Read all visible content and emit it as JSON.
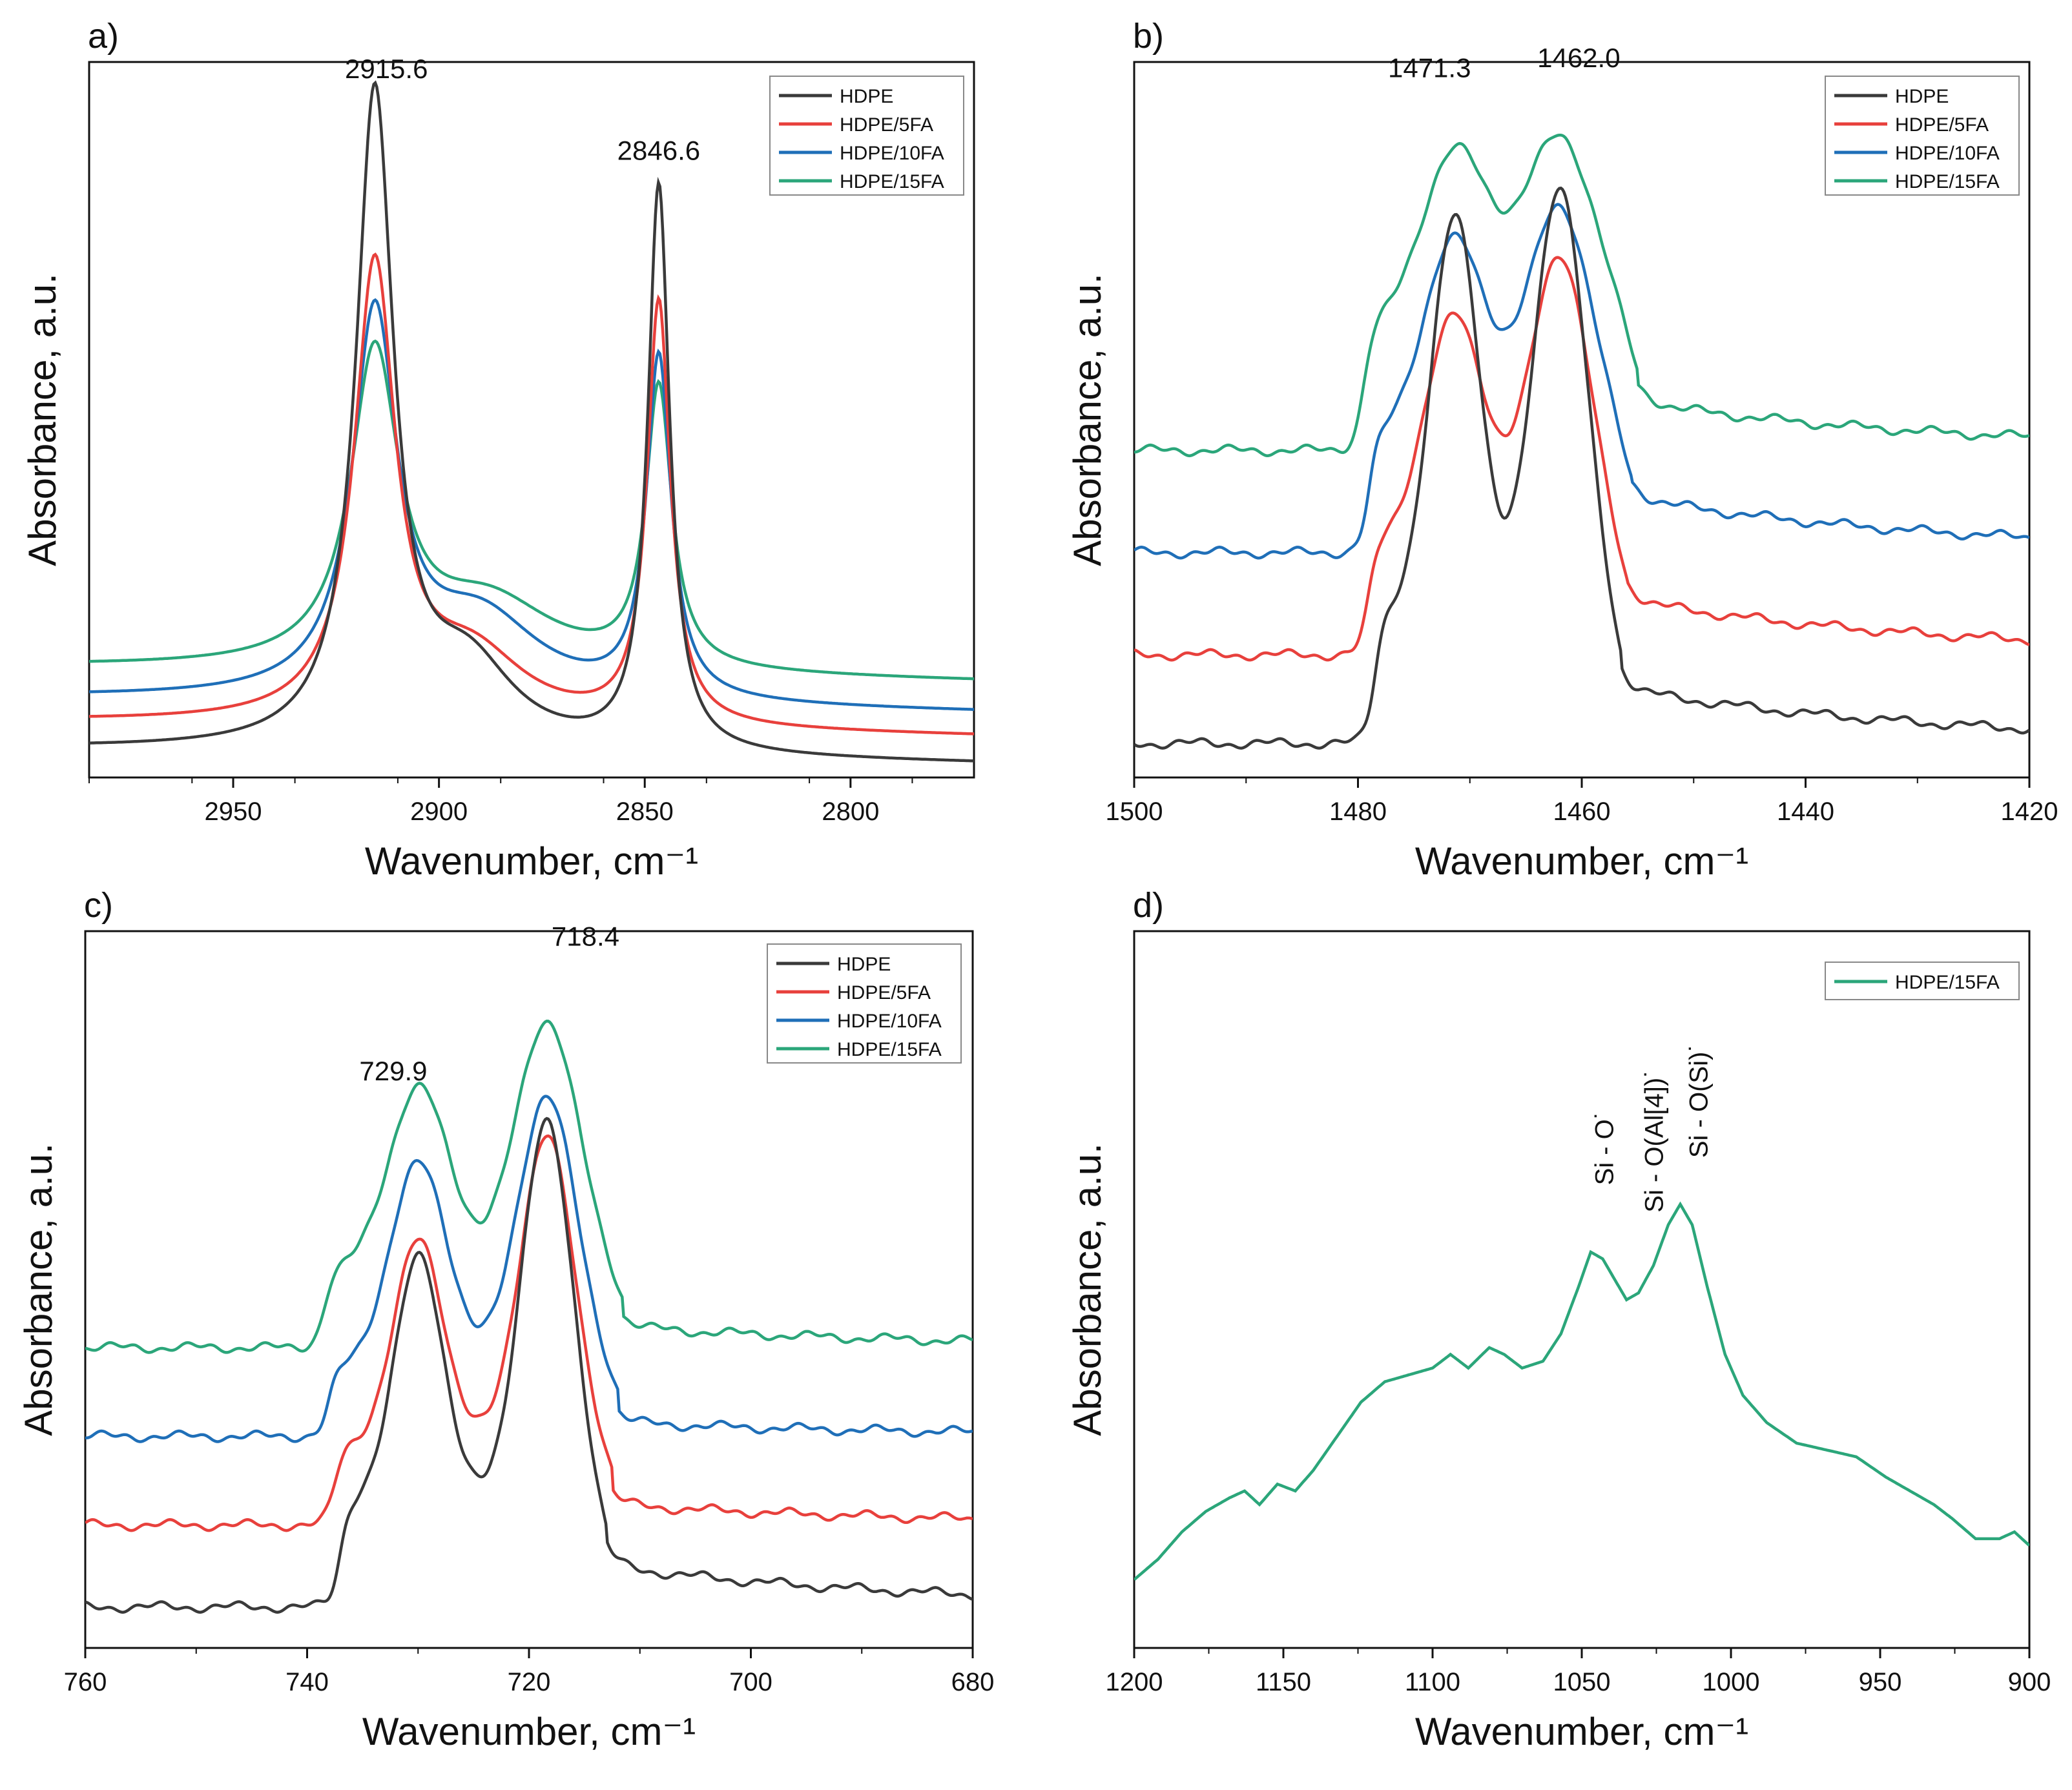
{
  "colors": {
    "HDPE": "#3a3a3a",
    "HDPE/5FA": "#e8403c",
    "HDPE/10FA": "#1f6fb8",
    "HDPE/15FA": "#2ba67a",
    "axis": "#111111"
  },
  "chart_data": [
    {
      "panel": "a)",
      "type": "line",
      "xlabel": "Wavenumber, cm⁻¹",
      "ylabel": "Absorbance, a.u.",
      "xlim": [
        2985,
        2770
      ],
      "ylim": [
        0,
        1.05
      ],
      "xticks": [
        2950,
        2900,
        2850,
        2800
      ],
      "yticks_shown": false,
      "legend": [
        "HDPE",
        "HDPE/5FA",
        "HDPE/10FA",
        "HDPE/15FA"
      ],
      "legend_position": "top-right",
      "annotations": [
        {
          "text": "2915.6",
          "x": 2915.6,
          "y": 1.0
        },
        {
          "text": "2846.6",
          "x": 2846.6,
          "y": 0.88
        }
      ],
      "series": [
        {
          "name": "HDPE",
          "baseline": 0.02,
          "slope": 0.0001,
          "peaks": [
            {
              "c": 2915.6,
              "h": 0.95,
              "w": 5.5
            },
            {
              "c": 2846.6,
              "h": 0.83,
              "w": 3.2
            },
            {
              "c": 2893,
              "h": 0.12,
              "w": 14
            }
          ]
        },
        {
          "name": "HDPE/5FA",
          "baseline": 0.06,
          "slope": 0.0001,
          "peaks": [
            {
              "c": 2915.6,
              "h": 0.66,
              "w": 6
            },
            {
              "c": 2846.6,
              "h": 0.62,
              "w": 3.4
            },
            {
              "c": 2892,
              "h": 0.1,
              "w": 16
            }
          ]
        },
        {
          "name": "HDPE/10FA",
          "baseline": 0.095,
          "slope": 0.0001,
          "peaks": [
            {
              "c": 2915.6,
              "h": 0.55,
              "w": 6.5
            },
            {
              "c": 2846.6,
              "h": 0.5,
              "w": 3.6
            },
            {
              "c": 2890,
              "h": 0.12,
              "w": 18
            }
          ]
        },
        {
          "name": "HDPE/15FA",
          "baseline": 0.14,
          "slope": 0.0001,
          "peaks": [
            {
              "c": 2915.6,
              "h": 0.45,
              "w": 7
            },
            {
              "c": 2846.6,
              "h": 0.41,
              "w": 3.8
            },
            {
              "c": 2888,
              "h": 0.1,
              "w": 20
            }
          ]
        }
      ]
    },
    {
      "panel": "b)",
      "type": "line",
      "xlabel": "Wavenumber, cm⁻¹",
      "ylabel": "Absorbance, a.u.",
      "xlim": [
        1500,
        1420
      ],
      "ylim": [
        0,
        1.05
      ],
      "xticks": [
        1500,
        1480,
        1460,
        1440,
        1420
      ],
      "yticks_shown": false,
      "legend": [
        "HDPE",
        "HDPE/5FA",
        "HDPE/10FA",
        "HDPE/15FA"
      ],
      "legend_position": "top-right",
      "annotations": [
        {
          "text": "1471.3",
          "x": 1471.3,
          "y": 0.99
        },
        {
          "text": "1462.0",
          "x": 1462.0,
          "y": 1.01
        }
      ],
      "series": [
        {
          "name": "HDPE",
          "plateau": [
            1478.5,
            1456.5
          ],
          "base": 0.05,
          "top": 0.25,
          "tail": 0.13,
          "peaks": [
            {
              "c": 1471.3,
              "h": 0.58,
              "w": 2.1
            },
            {
              "c": 1462.0,
              "h": 0.62,
              "w": 2.3
            }
          ]
        },
        {
          "name": "HDPE/5FA",
          "plateau": [
            1479,
            1456
          ],
          "base": 0.18,
          "top": 0.35,
          "tail": 0.26,
          "peaks": [
            {
              "c": 1471.3,
              "h": 0.33,
              "w": 2.6
            },
            {
              "c": 1462.0,
              "h": 0.42,
              "w": 2.6
            }
          ]
        },
        {
          "name": "HDPE/10FA",
          "plateau": [
            1479,
            1455.5
          ],
          "base": 0.33,
          "top": 0.5,
          "tail": 0.41,
          "peaks": [
            {
              "c": 1471.3,
              "h": 0.29,
              "w": 2.8
            },
            {
              "c": 1462.0,
              "h": 0.34,
              "w": 2.8
            }
          ]
        },
        {
          "name": "HDPE/15FA",
          "plateau": [
            1479.5,
            1455
          ],
          "base": 0.48,
          "top": 0.66,
          "tail": 0.55,
          "peaks": [
            {
              "c": 1471.3,
              "h": 0.26,
              "w": 3
            },
            {
              "c": 1462.0,
              "h": 0.28,
              "w": 3.2
            }
          ]
        }
      ]
    },
    {
      "panel": "c)",
      "type": "line",
      "xlabel": "Wavenumber, cm⁻¹",
      "ylabel": "Absorbance, a.u.",
      "xlim": [
        760,
        680
      ],
      "ylim": [
        0,
        1.05
      ],
      "xticks": [
        760,
        740,
        720,
        700,
        680
      ],
      "yticks_shown": false,
      "legend": [
        "HDPE",
        "HDPE/5FA",
        "HDPE/10FA",
        "HDPE/15FA"
      ],
      "legend_position": "top-right",
      "annotations": [
        {
          "text": "729.9",
          "x": 729.9,
          "y": 0.79
        },
        {
          "text": "718.4",
          "x": 718.4,
          "y": 1.01
        }
      ],
      "series": [
        {
          "name": "HDPE",
          "plateau": [
            737,
            713
          ],
          "base": 0.06,
          "top": 0.22,
          "tail": 0.12,
          "peaks": [
            {
              "c": 729.9,
              "h": 0.36,
              "w": 2.1
            },
            {
              "c": 718.4,
              "h": 0.55,
              "w": 2.3
            }
          ]
        },
        {
          "name": "HDPE/5FA",
          "plateau": [
            737.5,
            712.5
          ],
          "base": 0.18,
          "top": 0.3,
          "tail": 0.21,
          "peaks": [
            {
              "c": 729.9,
              "h": 0.3,
              "w": 2.2
            },
            {
              "c": 718.4,
              "h": 0.45,
              "w": 2.4
            }
          ]
        },
        {
          "name": "HDPE/10FA",
          "plateau": [
            738,
            712
          ],
          "base": 0.31,
          "top": 0.41,
          "tail": 0.33,
          "peaks": [
            {
              "c": 729.9,
              "h": 0.3,
              "w": 2.6
            },
            {
              "c": 718.4,
              "h": 0.4,
              "w": 2.6
            }
          ]
        },
        {
          "name": "HDPE/15FA",
          "plateau": [
            738.5,
            711.5
          ],
          "base": 0.44,
          "top": 0.55,
          "tail": 0.47,
          "peaks": [
            {
              "c": 729.9,
              "h": 0.27,
              "w": 2.8
            },
            {
              "c": 718.4,
              "h": 0.37,
              "w": 2.8
            }
          ]
        }
      ]
    },
    {
      "panel": "d)",
      "type": "line",
      "xlabel": "Wavenumber, cm⁻¹",
      "ylabel": "Absorbance, a.u.",
      "xlim": [
        1200,
        900
      ],
      "ylim": [
        0,
        1.05
      ],
      "xticks": [
        1200,
        1150,
        1100,
        1050,
        1000,
        950,
        900
      ],
      "yticks_shown": false,
      "legend": [
        "HDPE/15FA"
      ],
      "legend_position": "top-right",
      "annotations": [
        {
          "text": "Si - O˙",
          "x": 1046,
          "y": 0.64,
          "rotate": true
        },
        {
          "text": "Si - O(Al[4])˙",
          "x": 1035,
          "y": 0.6,
          "rotate": true
        },
        {
          "text": "Si - O(Si)˙",
          "x": 1020,
          "y": 0.68,
          "rotate": true
        }
      ],
      "series": [
        {
          "name": "HDPE/15FA",
          "points": [
            [
              1200,
              0.1
            ],
            [
              1192,
              0.13
            ],
            [
              1184,
              0.17
            ],
            [
              1176,
              0.2
            ],
            [
              1168,
              0.22
            ],
            [
              1163,
              0.23
            ],
            [
              1158,
              0.21
            ],
            [
              1152,
              0.24
            ],
            [
              1146,
              0.23
            ],
            [
              1140,
              0.26
            ],
            [
              1132,
              0.31
            ],
            [
              1124,
              0.36
            ],
            [
              1116,
              0.39
            ],
            [
              1108,
              0.4
            ],
            [
              1100,
              0.41
            ],
            [
              1094,
              0.43
            ],
            [
              1088,
              0.41
            ],
            [
              1081,
              0.44
            ],
            [
              1076,
              0.43
            ],
            [
              1070,
              0.41
            ],
            [
              1063,
              0.42
            ],
            [
              1057,
              0.46
            ],
            [
              1051,
              0.53
            ],
            [
              1047,
              0.58
            ],
            [
              1043,
              0.57
            ],
            [
              1039,
              0.54
            ],
            [
              1035,
              0.51
            ],
            [
              1031,
              0.52
            ],
            [
              1026,
              0.56
            ],
            [
              1021,
              0.62
            ],
            [
              1017,
              0.65
            ],
            [
              1013,
              0.62
            ],
            [
              1008,
              0.53
            ],
            [
              1002,
              0.43
            ],
            [
              996,
              0.37
            ],
            [
              988,
              0.33
            ],
            [
              978,
              0.3
            ],
            [
              968,
              0.29
            ],
            [
              958,
              0.28
            ],
            [
              948,
              0.25
            ],
            [
              940,
              0.23
            ],
            [
              932,
              0.21
            ],
            [
              926,
              0.19
            ],
            [
              918,
              0.16
            ],
            [
              910,
              0.16
            ],
            [
              905,
              0.17
            ],
            [
              900,
              0.15
            ]
          ]
        }
      ]
    }
  ]
}
